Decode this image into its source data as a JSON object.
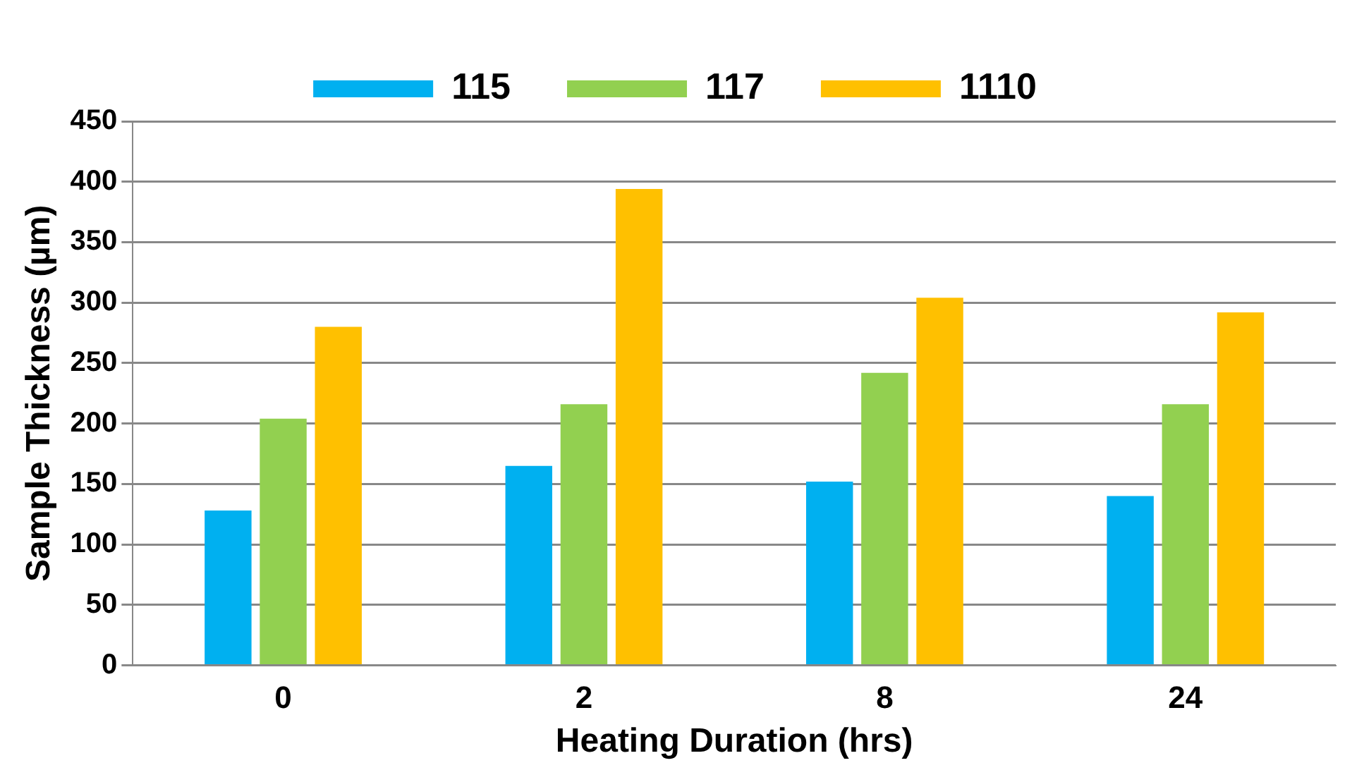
{
  "chart_data": {
    "type": "bar",
    "xlabel": "Heating Duration (hrs)",
    "ylabel": "Sample Thickness (µm)",
    "categories": [
      "0",
      "2",
      "8",
      "24"
    ],
    "series": [
      {
        "name": "115",
        "color": "#00b0f0",
        "values": [
          128,
          165,
          152,
          140
        ]
      },
      {
        "name": "117",
        "color": "#92d050",
        "values": [
          204,
          216,
          242,
          216
        ]
      },
      {
        "name": "1110",
        "color": "#ffc000",
        "values": [
          280,
          394,
          304,
          292
        ]
      }
    ],
    "ylim": [
      0,
      450
    ],
    "yticks": [
      0,
      50,
      100,
      150,
      200,
      250,
      300,
      350,
      400,
      450
    ],
    "grid": "y",
    "legend": "top"
  }
}
